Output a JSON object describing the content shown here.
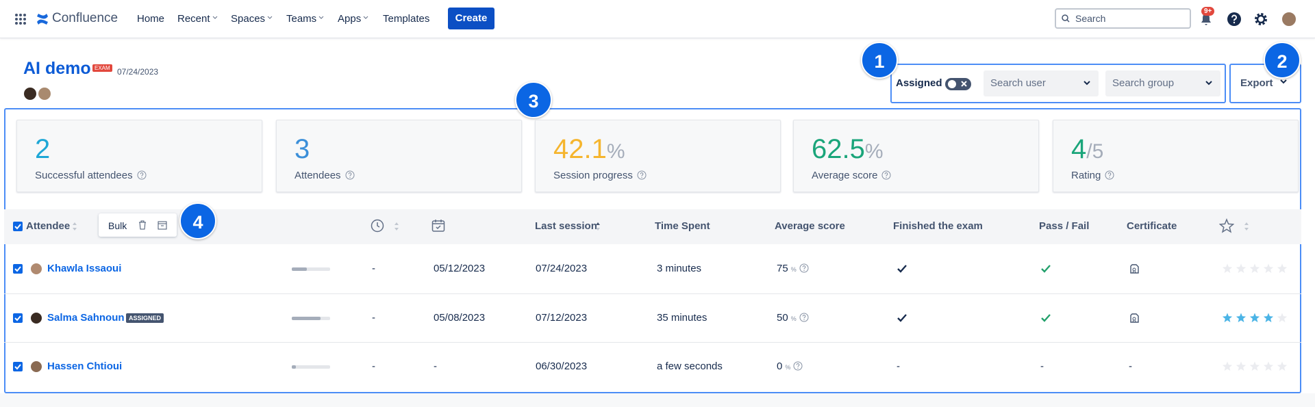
{
  "nav": {
    "brand": "Confluence",
    "items": [
      "Home",
      "Recent",
      "Spaces",
      "Teams",
      "Apps",
      "Templates"
    ],
    "create": "Create",
    "search": "Search",
    "notifications": "9+"
  },
  "page": {
    "title": "AI demo",
    "badge": "EXAM",
    "date": "07/24/2023"
  },
  "filters": {
    "assigned": "Assigned",
    "search_user": "Search user",
    "search_group": "Search group",
    "export": "Export"
  },
  "callouts": [
    1,
    2,
    3,
    4
  ],
  "stats": [
    {
      "value": 2,
      "label": "Successful attendees",
      "color": "#1ea7d6"
    },
    {
      "value": 3,
      "label": "Attendees",
      "color": "#3b8fd9"
    },
    {
      "value": 42.1,
      "unit": "%",
      "label": "Session progress",
      "color": "#f5b52e"
    },
    {
      "value": 62.5,
      "unit": "%",
      "label": "Average score",
      "color": "#1aa57a"
    },
    {
      "value": 4,
      "unit": "/5",
      "label": "Rating",
      "color": "#1aa57a"
    }
  ],
  "table": {
    "bulk": "Bulk",
    "score_unit": "%",
    "headers": {
      "attendee": "Attendee",
      "last_session": "Last session",
      "time_spent": "Time Spent",
      "average_score": "Average score",
      "finished": "Finished the exam",
      "pass_fail": "Pass / Fail",
      "certificate": "Certificate"
    },
    "rows": [
      {
        "name": "Khawla Issaoui",
        "progress": 40,
        "duration": "-",
        "start": "05/12/2023",
        "last": "07/24/2023",
        "time": "3 minutes",
        "score": 75,
        "finished": true,
        "pass": true,
        "certificate": true,
        "rating": 0
      },
      {
        "name": "Salma Sahnoun",
        "badge": "ASSIGNED",
        "progress": 75,
        "duration": "-",
        "start": "05/08/2023",
        "last": "07/12/2023",
        "time": "35 minutes",
        "score": 50,
        "finished": true,
        "pass": true,
        "certificate": true,
        "rating": 4
      },
      {
        "name": "Hassen Chtioui",
        "progress": 10,
        "duration": "-",
        "start": "-",
        "last": "06/30/2023",
        "time": "a few seconds",
        "score": 0,
        "finished": "-",
        "pass": "-",
        "certificate": "-",
        "rating": 0
      }
    ]
  }
}
